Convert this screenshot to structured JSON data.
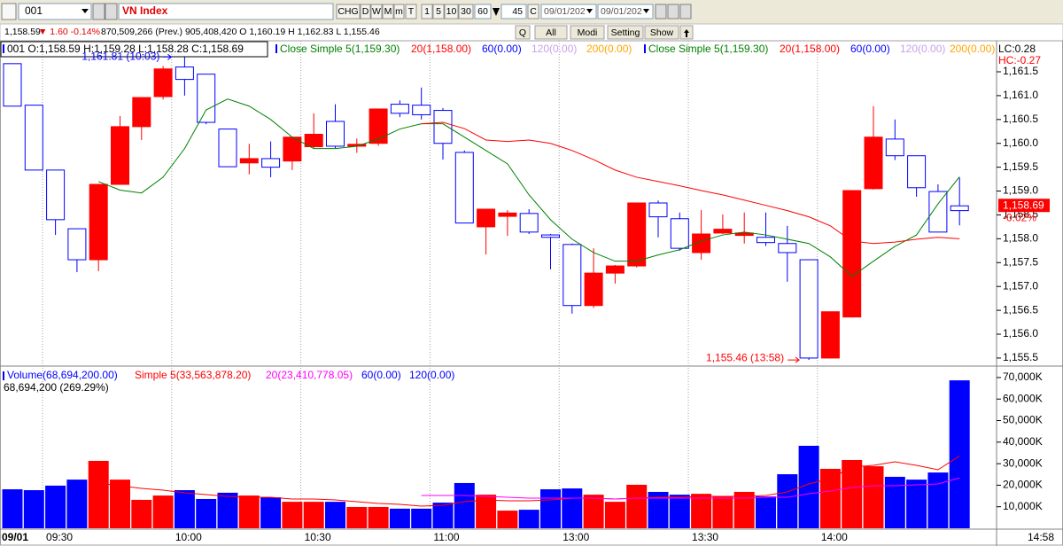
{
  "toolbar": {
    "symbol": "001",
    "name": "VN Index",
    "buttons": [
      "CHG",
      "D",
      "W",
      "M",
      "m",
      "T",
      "1",
      "5",
      "10",
      "30"
    ],
    "interval": "60",
    "count": "45",
    "mode": "C",
    "dates": [
      "09/01/202",
      "09/01/202"
    ]
  },
  "info": [
    "1,158.59",
    "▼ 1.60 -0.14%",
    "870,509,266 (Prev.) 905,408,420 O 1,160.19 H 1,162.83 L 1,155.46"
  ],
  "panel_buttons": [
    "Q",
    "All",
    "Modi",
    "Setting",
    "Show"
  ],
  "chart_data": [
    {
      "type": "candlestick",
      "legend": [
        {
          "label": "001 O:1,158.59 H:1,159.28 L:1,158.28 C:1,158.69",
          "color": "#000000"
        },
        {
          "label": "Close Simple 5(1,159.30)",
          "color": "#008000"
        },
        {
          "label": "20(1,158.00)",
          "color": "#ff0000"
        },
        {
          "label": "60(0.00)",
          "color": "#0000ff"
        },
        {
          "label": "120(0.00)",
          "color": "#c8a0e8"
        },
        {
          "label": "200(0.00)",
          "color": "#ffa500"
        },
        {
          "label": "Close Simple 5(1,159.30)",
          "color": "#008000"
        },
        {
          "label": "20(1,158.00)",
          "color": "#ff0000"
        },
        {
          "label": "60(0.00)",
          "color": "#0000ff"
        },
        {
          "label": "120(0.00)",
          "color": "#c8a0e8"
        },
        {
          "label": "200(0.00)",
          "color": "#ffa500"
        }
      ],
      "open": [
        1161.67,
        1160.8,
        1159.44,
        1158.21,
        1157.56,
        1159.14,
        1160.35,
        1160.98,
        1161.6,
        1161.45,
        1160.3,
        1159.59,
        1159.68,
        1159.63,
        1159.93,
        1160.46,
        1159.94,
        1160.0,
        1160.82,
        1160.8,
        1160.69,
        1159.81,
        1158.25,
        1158.47,
        1158.53,
        1158.08,
        1157.88,
        1156.6,
        1157.28,
        1157.43,
        1158.75,
        1158.42,
        1157.71,
        1158.12,
        1158.07,
        1158.03,
        1157.9,
        1157.56,
        1155.5,
        1156.36,
        1159.05,
        1160.09,
        1159.74,
        1158.99,
        1158.59
      ],
      "high": [
        1161.67,
        1160.8,
        1159.44,
        1158.21,
        1159.14,
        1160.57,
        1160.96,
        1161.62,
        1161.81,
        1161.45,
        1160.3,
        1159.99,
        1160.04,
        1160.13,
        1160.63,
        1160.82,
        1160.1,
        1160.72,
        1160.9,
        1161.17,
        1160.74,
        1159.85,
        1158.62,
        1158.6,
        1158.62,
        1158.1,
        1157.9,
        1157.8,
        1157.45,
        1158.75,
        1158.8,
        1158.55,
        1158.6,
        1158.51,
        1158.55,
        1158.55,
        1158.27,
        1157.56,
        1156.47,
        1159.01,
        1160.78,
        1160.5,
        1159.74,
        1159.14,
        1159.28
      ],
      "low": [
        1160.78,
        1159.44,
        1158.08,
        1157.3,
        1157.32,
        1159.14,
        1160.07,
        1160.92,
        1161.0,
        1160.4,
        1159.51,
        1159.35,
        1159.29,
        1159.44,
        1159.9,
        1159.9,
        1159.8,
        1159.95,
        1160.55,
        1160.5,
        1159.66,
        1158.33,
        1157.67,
        1158.06,
        1158.1,
        1157.36,
        1156.43,
        1156.55,
        1157.06,
        1157.4,
        1158.03,
        1157.75,
        1157.56,
        1158.1,
        1157.9,
        1157.85,
        1157.1,
        1155.46,
        1155.49,
        1156.36,
        1159.03,
        1159.65,
        1158.88,
        1158.14,
        1158.28
      ],
      "close": [
        1160.78,
        1159.44,
        1158.4,
        1157.56,
        1159.14,
        1160.35,
        1160.96,
        1161.56,
        1161.34,
        1160.44,
        1159.51,
        1159.68,
        1159.5,
        1160.13,
        1160.19,
        1159.94,
        1159.98,
        1160.72,
        1160.63,
        1160.6,
        1160.0,
        1158.33,
        1158.62,
        1158.54,
        1158.14,
        1158.03,
        1156.6,
        1157.28,
        1157.43,
        1158.75,
        1158.46,
        1157.8,
        1158.1,
        1158.2,
        1158.12,
        1157.92,
        1157.71,
        1155.5,
        1156.47,
        1159.01,
        1160.13,
        1159.74,
        1159.07,
        1158.14,
        1158.69
      ],
      "colors": [
        "#0000ff",
        "#0000ff",
        "#0000ff",
        "#0000ff",
        "#ff0000",
        "#ff0000",
        "#ff0000",
        "#ff0000",
        "#0000ff",
        "#0000ff",
        "#0000ff",
        "#ff0000",
        "#0000ff",
        "#ff0000",
        "#ff0000",
        "#0000ff",
        "#ff0000",
        "#ff0000",
        "#0000ff",
        "#0000ff",
        "#0000ff",
        "#0000ff",
        "#ff0000",
        "#ff0000",
        "#0000ff",
        "#0000ff",
        "#0000ff",
        "#ff0000",
        "#ff0000",
        "#ff0000",
        "#0000ff",
        "#0000ff",
        "#ff0000",
        "#ff0000",
        "#ff0000",
        "#0000ff",
        "#0000ff",
        "#0000ff",
        "#ff0000",
        "#ff0000",
        "#ff0000",
        "#0000ff",
        "#0000ff",
        "#0000ff",
        "#0000ff"
      ],
      "series": [
        {
          "color": "#008000",
          "values": [
            null,
            null,
            null,
            null,
            1159.2,
            1159.02,
            1158.96,
            1159.29,
            1159.89,
            1160.7,
            1160.93,
            1160.78,
            1160.5,
            1160.13,
            1159.89,
            1159.89,
            1159.94,
            1160.09,
            1160.3,
            1160.41,
            1160.41,
            1160.13,
            1159.85,
            1159.57,
            1158.92,
            1158.4,
            1157.99,
            1157.71,
            1157.53,
            1157.53,
            1157.66,
            1157.77,
            1157.95,
            1158.08,
            1158.14,
            1158.08,
            1157.99,
            1157.9,
            1157.62,
            1157.21,
            1157.53,
            1157.84,
            1158.08,
            1158.73,
            1159.3
          ]
        },
        {
          "color": "#ff0000",
          "values": [
            null,
            null,
            null,
            null,
            null,
            null,
            null,
            null,
            null,
            null,
            null,
            null,
            null,
            null,
            null,
            null,
            null,
            null,
            null,
            1160.41,
            1160.44,
            1160.31,
            1160.07,
            1160.04,
            1160.07,
            1160.0,
            1159.85,
            1159.66,
            1159.44,
            1159.29,
            1159.2,
            1159.11,
            1159.01,
            1158.92,
            1158.81,
            1158.7,
            1158.59,
            1158.46,
            1158.27,
            1157.95,
            1157.9,
            1157.93,
            1157.99,
            1158.03,
            1158.0
          ]
        }
      ],
      "ylim": [
        1155.35,
        1162.15
      ],
      "yticks": [
        {
          "value": 1155.5,
          "label": "1,155.5"
        },
        {
          "value": 1156,
          "label": "1,156.0"
        },
        {
          "value": 1156.5,
          "label": "1,156.5"
        },
        {
          "value": 1157,
          "label": "1,157.0"
        },
        {
          "value": 1157.5,
          "label": "1,157.5"
        },
        {
          "value": 1158,
          "label": "1,158.0"
        },
        {
          "value": 1158.5,
          "label": "1,158.5"
        },
        {
          "value": 1159,
          "label": "1,159.0"
        },
        {
          "value": 1159.5,
          "label": "1,159.5"
        },
        {
          "value": 1160,
          "label": "1,160.0"
        },
        {
          "value": 1160.5,
          "label": "1,160.5"
        },
        {
          "value": 1161,
          "label": "1,161.0"
        },
        {
          "value": 1161.5,
          "label": "1,161.5"
        }
      ],
      "xticks": [
        {
          "value": 1.4,
          "label": "09:30"
        },
        {
          "value": 7.4,
          "label": "10:00"
        },
        {
          "value": 13.4,
          "label": "10:30"
        },
        {
          "value": 19.4,
          "label": "11:00"
        },
        {
          "value": 25.4,
          "label": "13:00"
        },
        {
          "value": 31.4,
          "label": "13:30"
        },
        {
          "value": 37.4,
          "label": "14:00"
        }
      ],
      "date_label": "09/01",
      "last_time": "14:58",
      "annotations": [
        {
          "text": "1,161.81 (10:03)",
          "color": "#0000ff"
        },
        {
          "text": "1,155.46 (13:58)",
          "color": "#ff0000"
        }
      ],
      "last_price": {
        "label": "1,158.69",
        "change": "-0.02%"
      },
      "lc": "LC:0.28",
      "hc": "HC:-0.27"
    },
    {
      "type": "bar",
      "legend": [
        {
          "label": "Volume(68,694,200.00)",
          "color": "#0000ff"
        },
        {
          "label": "Simple 5(33,563,878.20)",
          "color": "#ff0000"
        },
        {
          "label": "20(23,410,778.05)",
          "color": "#ff00ff"
        },
        {
          "label": "60(0.00)",
          "color": "#0000ff"
        },
        {
          "label": "120(0.00)",
          "color": "#0000ff"
        }
      ],
      "top_label": "68,694,200 (269.29%)",
      "values": [
        18100000,
        17700000,
        19800000,
        22600000,
        31300000,
        22600000,
        13200000,
        15200000,
        17700000,
        13600000,
        16500000,
        15200000,
        14400000,
        12300000,
        12300000,
        12300000,
        9900000,
        9900000,
        9100000,
        9100000,
        11900000,
        21000000,
        15600000,
        8200000,
        8600000,
        18100000,
        18500000,
        15600000,
        12300000,
        20200000,
        16900000,
        15600000,
        16000000,
        14800000,
        16900000,
        14800000,
        25100000,
        38300000,
        27600000,
        31700000,
        28800000,
        23900000,
        22600000,
        25900000,
        68694200
      ],
      "colors": [
        "#0000ff",
        "#0000ff",
        "#0000ff",
        "#0000ff",
        "#ff0000",
        "#ff0000",
        "#ff0000",
        "#ff0000",
        "#0000ff",
        "#0000ff",
        "#0000ff",
        "#ff0000",
        "#0000ff",
        "#ff0000",
        "#ff0000",
        "#0000ff",
        "#ff0000",
        "#ff0000",
        "#0000ff",
        "#0000ff",
        "#0000ff",
        "#0000ff",
        "#ff0000",
        "#ff0000",
        "#0000ff",
        "#0000ff",
        "#0000ff",
        "#ff0000",
        "#ff0000",
        "#ff0000",
        "#0000ff",
        "#0000ff",
        "#ff0000",
        "#ff0000",
        "#ff0000",
        "#0000ff",
        "#0000ff",
        "#0000ff",
        "#ff0000",
        "#ff0000",
        "#ff0000",
        "#0000ff",
        "#0000ff",
        "#0000ff",
        "#0000ff"
      ],
      "series": [
        {
          "color": "#ff0000",
          "values": [
            null,
            null,
            null,
            null,
            20990000,
            19750000,
            18520000,
            17700000,
            16460000,
            15640000,
            14810000,
            14400000,
            14400000,
            13580000,
            13580000,
            13170000,
            12350000,
            11520000,
            11110000,
            10290000,
            10700000,
            12350000,
            13170000,
            12760000,
            12760000,
            13170000,
            13990000,
            13990000,
            13580000,
            13990000,
            14400000,
            14400000,
            14810000,
            14810000,
            14810000,
            15230000,
            16870000,
            20580000,
            23050000,
            28400000,
            29220000,
            30860000,
            29220000,
            27160000,
            33563878.2
          ]
        },
        {
          "color": "#ff00ff",
          "values": [
            null,
            null,
            null,
            null,
            null,
            null,
            null,
            null,
            null,
            null,
            null,
            null,
            null,
            null,
            null,
            null,
            null,
            null,
            null,
            15230000,
            15230000,
            15230000,
            14810000,
            14400000,
            13990000,
            13990000,
            13990000,
            13990000,
            13580000,
            13990000,
            13990000,
            13990000,
            13990000,
            13990000,
            13990000,
            14400000,
            14400000,
            16050000,
            17280000,
            18930000,
            19750000,
            19750000,
            20160000,
            20580000,
            23410778.05
          ]
        }
      ],
      "ylim": [
        0,
        74500000
      ],
      "yticks": [
        {
          "value": 10000000,
          "label": "10,000K"
        },
        {
          "value": 20000000,
          "label": "20,000K"
        },
        {
          "value": 30000000,
          "label": "30,000K"
        },
        {
          "value": 40000000,
          "label": "40,000K"
        },
        {
          "value": 50000000,
          "label": "50,000K"
        },
        {
          "value": 60000000,
          "label": "60,000K"
        },
        {
          "value": 70000000,
          "label": "70,000K"
        }
      ]
    }
  ]
}
